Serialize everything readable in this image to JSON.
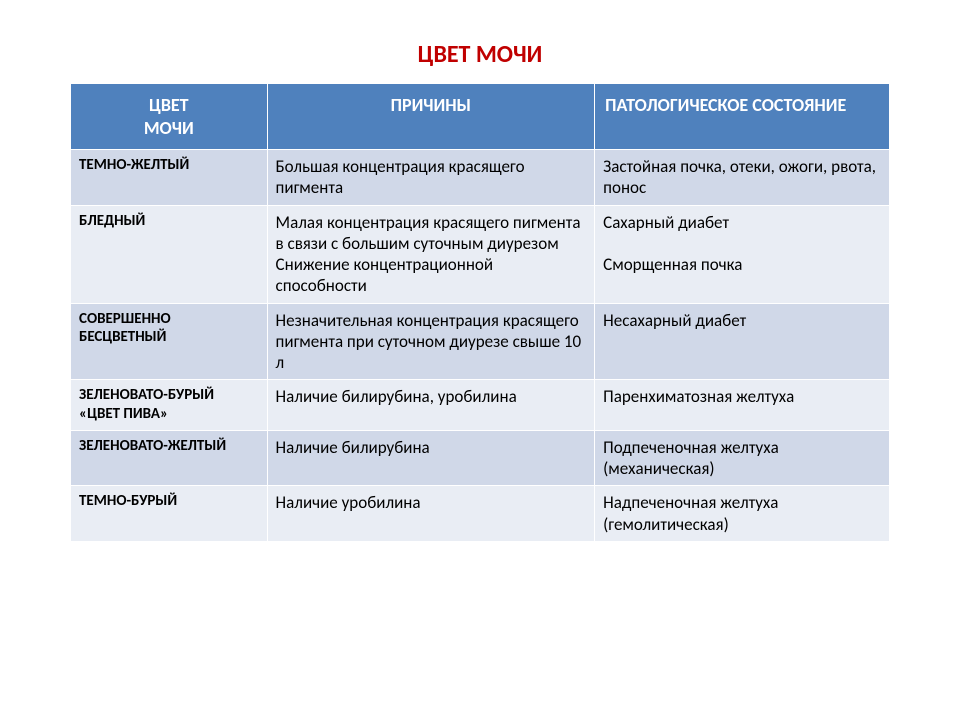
{
  "title": "ЦВЕТ МОЧИ",
  "title_color": "#c00000",
  "table": {
    "header_bg": "#4f81bd",
    "header_fg": "#ffffff",
    "row_alt_bg_even": "#d0d8e8",
    "row_alt_bg_odd": "#e9edf4",
    "col_widths_pct": [
      24,
      40,
      36
    ],
    "columns": [
      "ЦВЕТ\nМОЧИ",
      "ПРИЧИНЫ",
      "ПАТОЛОГИЧЕСКОЕ СОСТОЯНИЕ"
    ],
    "rows": [
      {
        "c0": "ТЕМНО-ЖЕЛТЫЙ",
        "c1": "Большая концентрация красящего пигмента",
        "c2": "Застойная почка, отеки, ожоги, рвота, понос"
      },
      {
        "c0": " БЛЕДНЫЙ",
        "c1": "Малая концентрация красящего пигмента в связи с большим суточным диурезом\nСнижение концентрационной способности",
        "c2": "Сахарный диабет\n\n Сморщенная почка"
      },
      {
        "c0": "СОВЕРШЕННО БЕСЦВЕТНЫЙ",
        "c1": "Незначительная концентрация красящего пигмента при суточном диурезе свыше 10 л",
        "c2": "Несахарный диабет"
      },
      {
        "c0": "ЗЕЛЕНОВАТО-БУРЫЙ\n«ЦВЕТ ПИВА»",
        "c1": "Наличие билирубина, уробилина",
        "c2": "Паренхиматозная желтуха"
      },
      {
        "c0": "ЗЕЛЕНОВАТО-ЖЕЛТЫЙ",
        "c1": "Наличие билирубина",
        "c2": "Подпеченочная желтуха (механическая)"
      },
      {
        "c0": "ТЕМНО-БУРЫЙ",
        "c1": "Наличие уробилина",
        "c2": "Надпеченочная желтуха (гемолитическая)"
      }
    ]
  }
}
